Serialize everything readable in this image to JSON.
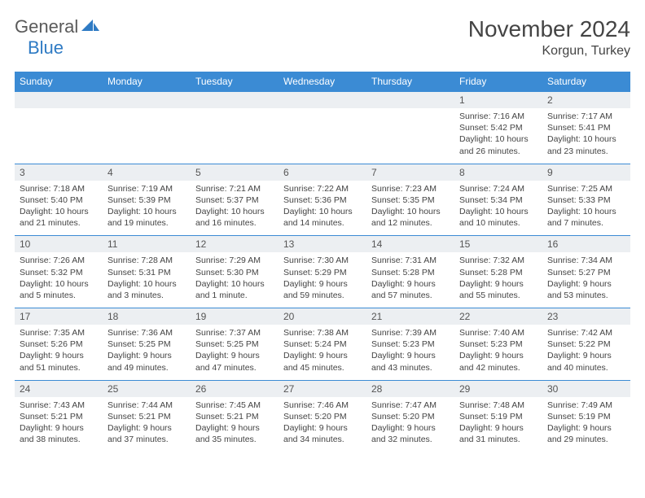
{
  "brand": {
    "part1": "General",
    "part2": "Blue"
  },
  "title": "November 2024",
  "location": "Korgun, Turkey",
  "colors": {
    "header_bg": "#3b8bd4",
    "header_text": "#ffffff",
    "daynum_bg": "#eceff2",
    "border": "#3b8bd4",
    "brand_gray": "#5a5a5a",
    "brand_blue": "#2f7bc4"
  },
  "dayNames": [
    "Sunday",
    "Monday",
    "Tuesday",
    "Wednesday",
    "Thursday",
    "Friday",
    "Saturday"
  ],
  "weeks": [
    [
      {
        "n": "",
        "sr": "",
        "ss": "",
        "dl": ""
      },
      {
        "n": "",
        "sr": "",
        "ss": "",
        "dl": ""
      },
      {
        "n": "",
        "sr": "",
        "ss": "",
        "dl": ""
      },
      {
        "n": "",
        "sr": "",
        "ss": "",
        "dl": ""
      },
      {
        "n": "",
        "sr": "",
        "ss": "",
        "dl": ""
      },
      {
        "n": "1",
        "sr": "Sunrise: 7:16 AM",
        "ss": "Sunset: 5:42 PM",
        "dl": "Daylight: 10 hours and 26 minutes."
      },
      {
        "n": "2",
        "sr": "Sunrise: 7:17 AM",
        "ss": "Sunset: 5:41 PM",
        "dl": "Daylight: 10 hours and 23 minutes."
      }
    ],
    [
      {
        "n": "3",
        "sr": "Sunrise: 7:18 AM",
        "ss": "Sunset: 5:40 PM",
        "dl": "Daylight: 10 hours and 21 minutes."
      },
      {
        "n": "4",
        "sr": "Sunrise: 7:19 AM",
        "ss": "Sunset: 5:39 PM",
        "dl": "Daylight: 10 hours and 19 minutes."
      },
      {
        "n": "5",
        "sr": "Sunrise: 7:21 AM",
        "ss": "Sunset: 5:37 PM",
        "dl": "Daylight: 10 hours and 16 minutes."
      },
      {
        "n": "6",
        "sr": "Sunrise: 7:22 AM",
        "ss": "Sunset: 5:36 PM",
        "dl": "Daylight: 10 hours and 14 minutes."
      },
      {
        "n": "7",
        "sr": "Sunrise: 7:23 AM",
        "ss": "Sunset: 5:35 PM",
        "dl": "Daylight: 10 hours and 12 minutes."
      },
      {
        "n": "8",
        "sr": "Sunrise: 7:24 AM",
        "ss": "Sunset: 5:34 PM",
        "dl": "Daylight: 10 hours and 10 minutes."
      },
      {
        "n": "9",
        "sr": "Sunrise: 7:25 AM",
        "ss": "Sunset: 5:33 PM",
        "dl": "Daylight: 10 hours and 7 minutes."
      }
    ],
    [
      {
        "n": "10",
        "sr": "Sunrise: 7:26 AM",
        "ss": "Sunset: 5:32 PM",
        "dl": "Daylight: 10 hours and 5 minutes."
      },
      {
        "n": "11",
        "sr": "Sunrise: 7:28 AM",
        "ss": "Sunset: 5:31 PM",
        "dl": "Daylight: 10 hours and 3 minutes."
      },
      {
        "n": "12",
        "sr": "Sunrise: 7:29 AM",
        "ss": "Sunset: 5:30 PM",
        "dl": "Daylight: 10 hours and 1 minute."
      },
      {
        "n": "13",
        "sr": "Sunrise: 7:30 AM",
        "ss": "Sunset: 5:29 PM",
        "dl": "Daylight: 9 hours and 59 minutes."
      },
      {
        "n": "14",
        "sr": "Sunrise: 7:31 AM",
        "ss": "Sunset: 5:28 PM",
        "dl": "Daylight: 9 hours and 57 minutes."
      },
      {
        "n": "15",
        "sr": "Sunrise: 7:32 AM",
        "ss": "Sunset: 5:28 PM",
        "dl": "Daylight: 9 hours and 55 minutes."
      },
      {
        "n": "16",
        "sr": "Sunrise: 7:34 AM",
        "ss": "Sunset: 5:27 PM",
        "dl": "Daylight: 9 hours and 53 minutes."
      }
    ],
    [
      {
        "n": "17",
        "sr": "Sunrise: 7:35 AM",
        "ss": "Sunset: 5:26 PM",
        "dl": "Daylight: 9 hours and 51 minutes."
      },
      {
        "n": "18",
        "sr": "Sunrise: 7:36 AM",
        "ss": "Sunset: 5:25 PM",
        "dl": "Daylight: 9 hours and 49 minutes."
      },
      {
        "n": "19",
        "sr": "Sunrise: 7:37 AM",
        "ss": "Sunset: 5:25 PM",
        "dl": "Daylight: 9 hours and 47 minutes."
      },
      {
        "n": "20",
        "sr": "Sunrise: 7:38 AM",
        "ss": "Sunset: 5:24 PM",
        "dl": "Daylight: 9 hours and 45 minutes."
      },
      {
        "n": "21",
        "sr": "Sunrise: 7:39 AM",
        "ss": "Sunset: 5:23 PM",
        "dl": "Daylight: 9 hours and 43 minutes."
      },
      {
        "n": "22",
        "sr": "Sunrise: 7:40 AM",
        "ss": "Sunset: 5:23 PM",
        "dl": "Daylight: 9 hours and 42 minutes."
      },
      {
        "n": "23",
        "sr": "Sunrise: 7:42 AM",
        "ss": "Sunset: 5:22 PM",
        "dl": "Daylight: 9 hours and 40 minutes."
      }
    ],
    [
      {
        "n": "24",
        "sr": "Sunrise: 7:43 AM",
        "ss": "Sunset: 5:21 PM",
        "dl": "Daylight: 9 hours and 38 minutes."
      },
      {
        "n": "25",
        "sr": "Sunrise: 7:44 AM",
        "ss": "Sunset: 5:21 PM",
        "dl": "Daylight: 9 hours and 37 minutes."
      },
      {
        "n": "26",
        "sr": "Sunrise: 7:45 AM",
        "ss": "Sunset: 5:21 PM",
        "dl": "Daylight: 9 hours and 35 minutes."
      },
      {
        "n": "27",
        "sr": "Sunrise: 7:46 AM",
        "ss": "Sunset: 5:20 PM",
        "dl": "Daylight: 9 hours and 34 minutes."
      },
      {
        "n": "28",
        "sr": "Sunrise: 7:47 AM",
        "ss": "Sunset: 5:20 PM",
        "dl": "Daylight: 9 hours and 32 minutes."
      },
      {
        "n": "29",
        "sr": "Sunrise: 7:48 AM",
        "ss": "Sunset: 5:19 PM",
        "dl": "Daylight: 9 hours and 31 minutes."
      },
      {
        "n": "30",
        "sr": "Sunrise: 7:49 AM",
        "ss": "Sunset: 5:19 PM",
        "dl": "Daylight: 9 hours and 29 minutes."
      }
    ]
  ]
}
